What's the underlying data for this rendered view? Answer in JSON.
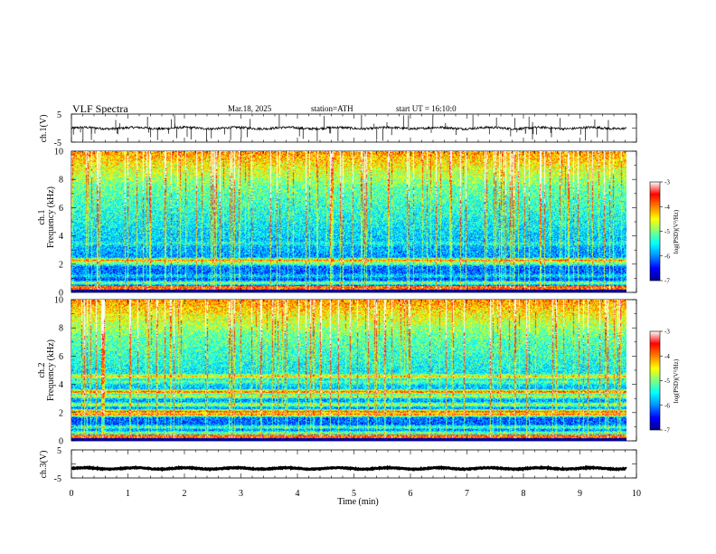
{
  "header": {
    "title": "VLF  Spectra",
    "date": "Mar.18, 2025",
    "station": "station=ATH",
    "start_ut": "start  UT  =   16:10:0"
  },
  "chart_data": [
    {
      "type": "line",
      "name": "ch1-waveform",
      "ylabel": "ch.1(V)",
      "ylim": [
        -5,
        5
      ],
      "yticks": [
        "5",
        "-5"
      ],
      "xlim": [
        0,
        10
      ],
      "baseline": 0,
      "noise_amplitude": 0.4,
      "spike_density": "high"
    },
    {
      "type": "heatmap",
      "name": "ch1-spectrogram",
      "ylabel": "Frequency (kHz)",
      "channel_label": "ch.1",
      "xlim": [
        0,
        10
      ],
      "ylim": [
        0,
        10
      ],
      "yticks": [
        "0",
        "2",
        "4",
        "6",
        "8",
        "10"
      ],
      "colorbar": {
        "label": "log(PSD)(V²/Hz)",
        "range": [
          -7,
          -3
        ],
        "ticks": [
          "-3",
          "-4",
          "-5",
          "-6",
          "-7"
        ]
      },
      "bands_khz": [
        {
          "f": 0.7,
          "level": -4.9
        },
        {
          "f": 1.2,
          "level": -5.6
        },
        {
          "f": 1.6,
          "level": -6.1
        },
        {
          "f": 2.1,
          "level": -4.8
        },
        {
          "f": 2.3,
          "level": -3.9
        },
        {
          "f": 3.5,
          "level": -5.4
        },
        {
          "f": 4.2,
          "level": -6.2
        },
        {
          "f": 5.0,
          "level": -6.6
        },
        {
          "f": 5.3,
          "level": -5.4
        },
        {
          "f": 6.2,
          "level": -6.2
        },
        {
          "f": 8.8,
          "level": -5.0
        },
        {
          "f": 9.6,
          "level": -4.6
        }
      ]
    },
    {
      "type": "heatmap",
      "name": "ch2-spectrogram",
      "ylabel": "Frequency (kHz)",
      "channel_label": "ch.2",
      "xlim": [
        0,
        10
      ],
      "ylim": [
        0,
        10
      ],
      "yticks": [
        "0",
        "2",
        "4",
        "6",
        "8",
        "10"
      ],
      "colorbar": {
        "label": "log(PSD)(V²/Hz)",
        "range": [
          -7,
          -3
        ],
        "ticks": [
          "-3",
          "-4",
          "-5",
          "-6",
          "-7"
        ]
      },
      "bands_khz": [
        {
          "f": 0.6,
          "level": -4.9
        },
        {
          "f": 1.0,
          "level": -5.1
        },
        {
          "f": 1.9,
          "level": -3.8
        },
        {
          "f": 2.1,
          "level": -3.6
        },
        {
          "f": 2.6,
          "level": -4.7
        },
        {
          "f": 3.2,
          "level": -4.6
        },
        {
          "f": 3.5,
          "level": -3.7
        },
        {
          "f": 4.2,
          "level": -5.1
        },
        {
          "f": 4.6,
          "level": -4.3
        },
        {
          "f": 5.5,
          "level": -5.6
        },
        {
          "f": 8.8,
          "level": -5.0
        },
        {
          "f": 9.6,
          "level": -4.5
        }
      ]
    },
    {
      "type": "line",
      "name": "ch3-waveform",
      "ylabel": "ch.3(V)",
      "xlabel": "Time  (min)",
      "ylim": [
        -5,
        5
      ],
      "yticks": [
        "5",
        "-5"
      ],
      "xlim": [
        0,
        10
      ],
      "xticks": [
        "0",
        "1",
        "2",
        "3",
        "4",
        "5",
        "6",
        "7",
        "8",
        "9",
        "10"
      ],
      "baseline": -1.6,
      "noise_amplitude": 0.15
    }
  ],
  "colors": {
    "cmap": [
      "#00008f",
      "#0000ff",
      "#008fff",
      "#00ffff",
      "#7fff80",
      "#ffff00",
      "#ff8000",
      "#ff0000",
      "#ffffff"
    ],
    "axis": "#000000"
  }
}
